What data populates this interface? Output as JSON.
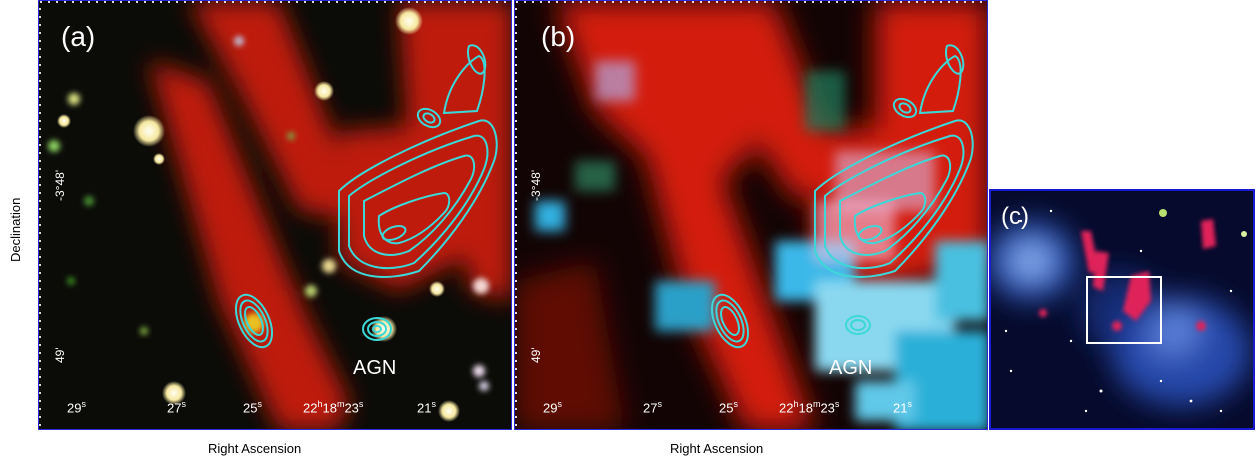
{
  "panels": {
    "a": {
      "label": "(a)",
      "agn": "AGN"
    },
    "b": {
      "label": "(b)",
      "agn": "AGN"
    },
    "c": {
      "label": "(c)"
    }
  },
  "axes": {
    "xlabel": "Right Ascension",
    "ylabel": "Declination",
    "ra_ticks": [
      "29",
      "27",
      "25",
      "22h18m23",
      "21"
    ],
    "dec_ticks": [
      "-3°48'",
      "49'"
    ]
  },
  "colors": {
    "frame": "#2a2ad8",
    "contour": "#3cd8d8",
    "diffuse": "#d81c10",
    "xray": "#30b8e8"
  }
}
